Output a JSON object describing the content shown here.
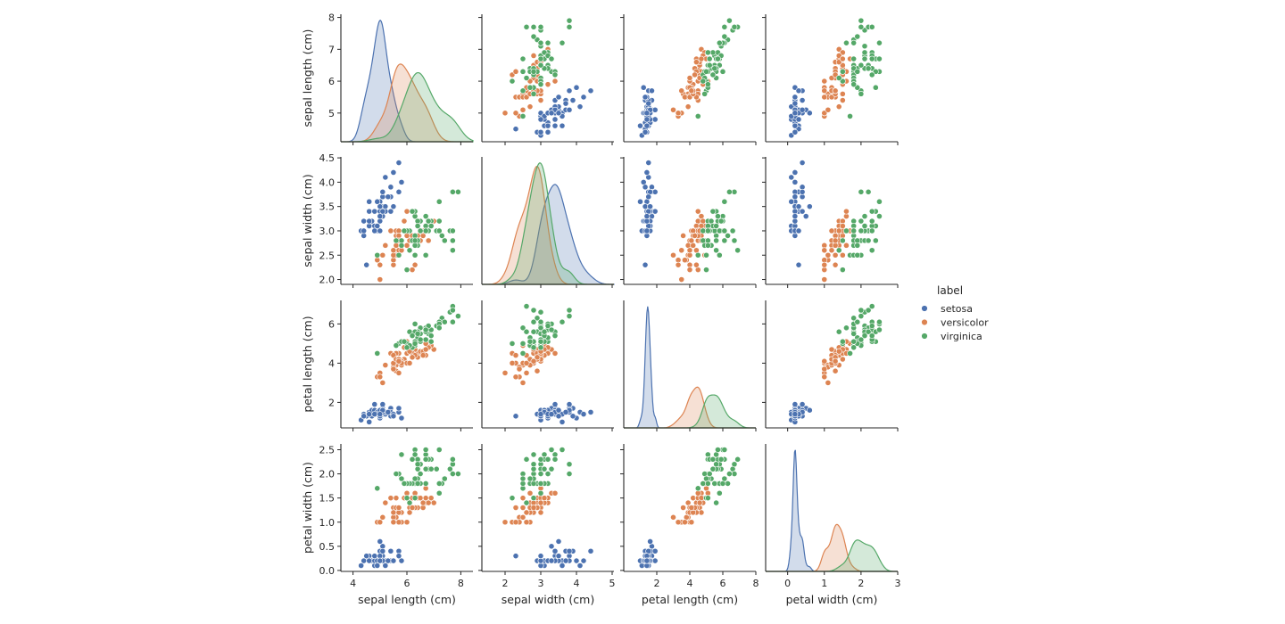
{
  "chart_data": {
    "type": "scatter",
    "title": "",
    "legend": {
      "title": "label",
      "placement": "right",
      "entries": [
        {
          "name": "setosa",
          "color": "#4c72b0"
        },
        {
          "name": "versicolor",
          "color": "#dd8452"
        },
        {
          "name": "virginica",
          "color": "#55a868"
        }
      ]
    },
    "variables": [
      {
        "key": "sl",
        "label": "sepal length (cm)",
        "lim": [
          3.55,
          8.45
        ],
        "ticks": [
          4,
          6,
          8
        ],
        "rowlim": [
          4.1,
          8.1
        ],
        "rowticks": [
          5,
          6,
          7,
          8
        ]
      },
      {
        "key": "sw",
        "label": "sepal width (cm)",
        "lim": [
          1.35,
          5.05
        ],
        "ticks": [
          2,
          3,
          4,
          5
        ],
        "rowlim": [
          1.9,
          4.52
        ],
        "rowticks": [
          2.0,
          2.5,
          3.0,
          3.5,
          4.0,
          4.5
        ]
      },
      {
        "key": "pl",
        "label": "petal length (cm)",
        "lim": [
          0.0,
          8.0
        ],
        "ticks": [
          2,
          4,
          6,
          8
        ],
        "rowlim": [
          0.7,
          7.2
        ],
        "rowticks": [
          2,
          4,
          6
        ]
      },
      {
        "key": "pw",
        "label": "petal width (cm)",
        "lim": [
          -0.6,
          3.0
        ],
        "ticks": [
          0,
          1,
          2,
          3
        ],
        "rowlim": [
          -0.02,
          2.62
        ],
        "rowticks": [
          0.0,
          0.5,
          1.0,
          1.5,
          2.0,
          2.5
        ]
      }
    ],
    "species": [
      {
        "name": "setosa",
        "color": "#4c72b0",
        "points": [
          [
            5.1,
            3.5,
            1.4,
            0.2
          ],
          [
            4.9,
            3.0,
            1.4,
            0.2
          ],
          [
            4.7,
            3.2,
            1.3,
            0.2
          ],
          [
            4.6,
            3.1,
            1.5,
            0.2
          ],
          [
            5.0,
            3.6,
            1.4,
            0.2
          ],
          [
            5.4,
            3.9,
            1.7,
            0.4
          ],
          [
            4.6,
            3.4,
            1.4,
            0.3
          ],
          [
            5.0,
            3.4,
            1.5,
            0.2
          ],
          [
            4.4,
            2.9,
            1.4,
            0.2
          ],
          [
            4.9,
            3.1,
            1.5,
            0.1
          ],
          [
            5.4,
            3.7,
            1.5,
            0.2
          ],
          [
            4.8,
            3.4,
            1.6,
            0.2
          ],
          [
            4.8,
            3.0,
            1.4,
            0.1
          ],
          [
            4.3,
            3.0,
            1.1,
            0.1
          ],
          [
            5.8,
            4.0,
            1.2,
            0.2
          ],
          [
            5.7,
            4.4,
            1.5,
            0.4
          ],
          [
            5.4,
            3.9,
            1.3,
            0.4
          ],
          [
            5.1,
            3.5,
            1.4,
            0.3
          ],
          [
            5.7,
            3.8,
            1.7,
            0.3
          ],
          [
            5.1,
            3.8,
            1.5,
            0.3
          ],
          [
            5.4,
            3.4,
            1.7,
            0.2
          ],
          [
            5.1,
            3.7,
            1.5,
            0.4
          ],
          [
            4.6,
            3.6,
            1.0,
            0.2
          ],
          [
            5.1,
            3.3,
            1.7,
            0.5
          ],
          [
            4.8,
            3.4,
            1.9,
            0.2
          ],
          [
            5.0,
            3.0,
            1.6,
            0.2
          ],
          [
            5.0,
            3.4,
            1.6,
            0.4
          ],
          [
            5.2,
            3.5,
            1.5,
            0.2
          ],
          [
            5.2,
            3.4,
            1.4,
            0.2
          ],
          [
            4.7,
            3.2,
            1.6,
            0.2
          ],
          [
            4.8,
            3.1,
            1.6,
            0.2
          ],
          [
            5.4,
            3.4,
            1.5,
            0.4
          ],
          [
            5.2,
            4.1,
            1.5,
            0.1
          ],
          [
            5.5,
            4.2,
            1.4,
            0.2
          ],
          [
            4.9,
            3.1,
            1.5,
            0.2
          ],
          [
            5.0,
            3.2,
            1.2,
            0.2
          ],
          [
            5.5,
            3.5,
            1.3,
            0.2
          ],
          [
            4.9,
            3.6,
            1.4,
            0.1
          ],
          [
            4.4,
            3.0,
            1.3,
            0.2
          ],
          [
            5.1,
            3.4,
            1.5,
            0.2
          ],
          [
            5.0,
            3.5,
            1.3,
            0.3
          ],
          [
            4.5,
            2.3,
            1.3,
            0.3
          ],
          [
            4.4,
            3.2,
            1.3,
            0.2
          ],
          [
            5.0,
            3.5,
            1.6,
            0.6
          ],
          [
            5.1,
            3.8,
            1.9,
            0.4
          ],
          [
            4.8,
            3.0,
            1.4,
            0.3
          ],
          [
            5.1,
            3.8,
            1.6,
            0.2
          ],
          [
            4.6,
            3.2,
            1.4,
            0.2
          ],
          [
            5.3,
            3.7,
            1.5,
            0.2
          ],
          [
            5.0,
            3.3,
            1.4,
            0.2
          ]
        ]
      },
      {
        "name": "versicolor",
        "color": "#dd8452",
        "points": [
          [
            7.0,
            3.2,
            4.7,
            1.4
          ],
          [
            6.4,
            3.2,
            4.5,
            1.5
          ],
          [
            6.9,
            3.1,
            4.9,
            1.5
          ],
          [
            5.5,
            2.3,
            4.0,
            1.3
          ],
          [
            6.5,
            2.8,
            4.6,
            1.5
          ],
          [
            5.7,
            2.8,
            4.5,
            1.3
          ],
          [
            6.3,
            3.3,
            4.7,
            1.6
          ],
          [
            4.9,
            2.4,
            3.3,
            1.0
          ],
          [
            6.6,
            2.9,
            4.6,
            1.3
          ],
          [
            5.2,
            2.7,
            3.9,
            1.4
          ],
          [
            5.0,
            2.0,
            3.5,
            1.0
          ],
          [
            5.9,
            3.0,
            4.2,
            1.5
          ],
          [
            6.0,
            2.2,
            4.0,
            1.0
          ],
          [
            6.1,
            2.9,
            4.7,
            1.4
          ],
          [
            5.6,
            2.9,
            3.6,
            1.3
          ],
          [
            6.7,
            3.1,
            4.4,
            1.4
          ],
          [
            5.6,
            3.0,
            4.5,
            1.5
          ],
          [
            5.8,
            2.7,
            4.1,
            1.0
          ],
          [
            6.2,
            2.2,
            4.5,
            1.5
          ],
          [
            5.6,
            2.5,
            3.9,
            1.1
          ],
          [
            5.9,
            3.2,
            4.8,
            1.8
          ],
          [
            6.1,
            2.8,
            4.0,
            1.3
          ],
          [
            6.3,
            2.5,
            4.9,
            1.5
          ],
          [
            6.1,
            2.8,
            4.7,
            1.2
          ],
          [
            6.4,
            2.9,
            4.3,
            1.3
          ],
          [
            6.6,
            3.0,
            4.4,
            1.4
          ],
          [
            6.8,
            2.8,
            4.8,
            1.4
          ],
          [
            6.7,
            3.0,
            5.0,
            1.7
          ],
          [
            6.0,
            2.9,
            4.5,
            1.5
          ],
          [
            5.7,
            2.6,
            3.5,
            1.0
          ],
          [
            5.5,
            2.4,
            3.8,
            1.1
          ],
          [
            5.5,
            2.4,
            3.7,
            1.0
          ],
          [
            5.8,
            2.7,
            3.9,
            1.2
          ],
          [
            6.0,
            2.7,
            5.1,
            1.6
          ],
          [
            5.4,
            3.0,
            4.5,
            1.5
          ],
          [
            6.0,
            3.4,
            4.5,
            1.6
          ],
          [
            6.7,
            3.1,
            4.7,
            1.5
          ],
          [
            6.3,
            2.3,
            4.4,
            1.3
          ],
          [
            5.6,
            3.0,
            4.1,
            1.3
          ],
          [
            5.5,
            2.5,
            4.0,
            1.3
          ],
          [
            5.5,
            2.6,
            4.4,
            1.2
          ],
          [
            6.1,
            3.0,
            4.6,
            1.4
          ],
          [
            5.8,
            2.6,
            4.0,
            1.2
          ],
          [
            5.0,
            2.3,
            3.3,
            1.0
          ],
          [
            5.6,
            2.7,
            4.2,
            1.3
          ],
          [
            5.7,
            3.0,
            4.2,
            1.2
          ],
          [
            5.7,
            2.9,
            4.2,
            1.3
          ],
          [
            6.2,
            2.9,
            4.3,
            1.3
          ],
          [
            5.1,
            2.5,
            3.0,
            1.1
          ],
          [
            5.7,
            2.8,
            4.1,
            1.3
          ]
        ]
      },
      {
        "name": "virginica",
        "color": "#55a868",
        "points": [
          [
            6.3,
            3.3,
            6.0,
            2.5
          ],
          [
            5.8,
            2.7,
            5.1,
            1.9
          ],
          [
            7.1,
            3.0,
            5.9,
            2.1
          ],
          [
            6.3,
            2.9,
            5.6,
            1.8
          ],
          [
            6.5,
            3.0,
            5.8,
            2.2
          ],
          [
            7.6,
            3.0,
            6.6,
            2.1
          ],
          [
            4.9,
            2.5,
            4.5,
            1.7
          ],
          [
            7.3,
            2.9,
            6.3,
            1.8
          ],
          [
            6.7,
            2.5,
            5.8,
            1.8
          ],
          [
            7.2,
            3.6,
            6.1,
            2.5
          ],
          [
            6.5,
            3.2,
            5.1,
            2.0
          ],
          [
            6.4,
            2.7,
            5.3,
            1.9
          ],
          [
            6.8,
            3.0,
            5.5,
            2.1
          ],
          [
            5.7,
            2.5,
            5.0,
            2.0
          ],
          [
            5.8,
            2.8,
            5.1,
            2.4
          ],
          [
            6.4,
            3.2,
            5.3,
            2.3
          ],
          [
            6.5,
            3.0,
            5.5,
            1.8
          ],
          [
            7.7,
            3.8,
            6.7,
            2.2
          ],
          [
            7.7,
            2.6,
            6.9,
            2.3
          ],
          [
            6.0,
            2.2,
            5.0,
            1.5
          ],
          [
            6.9,
            3.2,
            5.7,
            2.3
          ],
          [
            5.6,
            2.8,
            4.9,
            2.0
          ],
          [
            7.7,
            2.8,
            6.7,
            2.0
          ],
          [
            6.3,
            2.7,
            4.9,
            1.8
          ],
          [
            6.7,
            3.3,
            5.7,
            2.1
          ],
          [
            7.2,
            3.2,
            6.0,
            1.8
          ],
          [
            6.2,
            2.8,
            4.8,
            1.8
          ],
          [
            6.1,
            3.0,
            4.9,
            1.8
          ],
          [
            6.4,
            2.8,
            5.6,
            2.1
          ],
          [
            7.2,
            3.0,
            5.8,
            1.6
          ],
          [
            7.4,
            2.8,
            6.1,
            1.9
          ],
          [
            7.9,
            3.8,
            6.4,
            2.0
          ],
          [
            6.4,
            2.8,
            5.6,
            2.2
          ],
          [
            6.3,
            2.8,
            5.1,
            1.5
          ],
          [
            6.1,
            2.6,
            5.6,
            1.4
          ],
          [
            7.7,
            3.0,
            6.1,
            2.3
          ],
          [
            6.3,
            3.4,
            5.6,
            2.4
          ],
          [
            6.4,
            3.1,
            5.5,
            1.8
          ],
          [
            6.0,
            3.0,
            4.8,
            1.8
          ],
          [
            6.9,
            3.1,
            5.4,
            2.1
          ],
          [
            6.7,
            3.1,
            5.6,
            2.4
          ],
          [
            6.9,
            3.1,
            5.1,
            2.3
          ],
          [
            5.8,
            2.7,
            5.1,
            1.9
          ],
          [
            6.8,
            3.2,
            5.9,
            2.3
          ],
          [
            6.7,
            3.3,
            5.7,
            2.5
          ],
          [
            6.7,
            3.0,
            5.2,
            2.3
          ],
          [
            6.3,
            2.5,
            5.0,
            1.9
          ],
          [
            6.5,
            3.0,
            5.2,
            2.0
          ],
          [
            6.2,
            3.4,
            5.4,
            2.3
          ],
          [
            5.9,
            3.0,
            5.1,
            1.8
          ]
        ]
      }
    ]
  }
}
